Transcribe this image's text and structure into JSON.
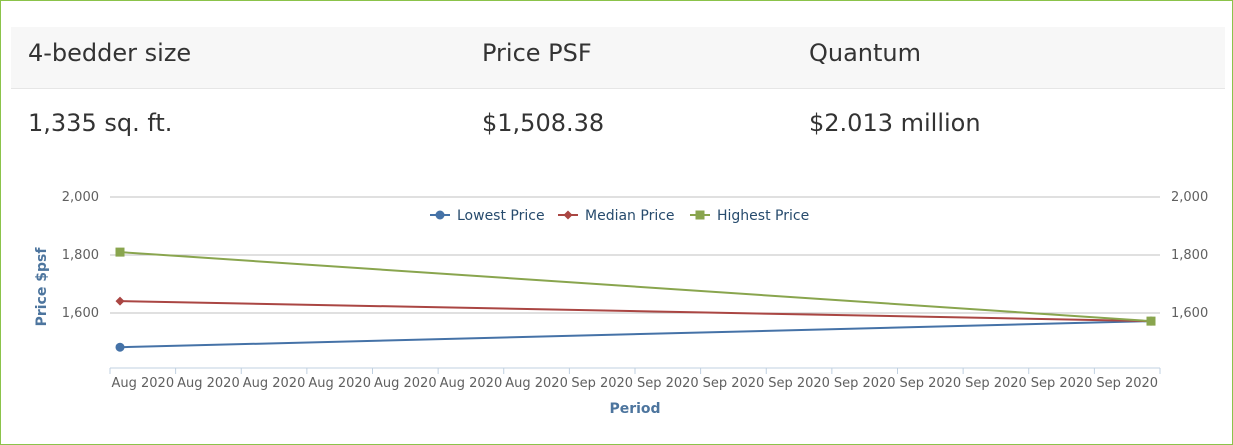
{
  "table": {
    "headers": [
      "4-bedder size",
      "Price PSF",
      "Quantum"
    ],
    "values": [
      "1,335 sq. ft.",
      "$1,508.38",
      "$2.013 million"
    ]
  },
  "chart_data": {
    "type": "line",
    "title": "",
    "xlabel": "Period",
    "ylabel": "Price $psf",
    "categories": [
      "Aug 2020",
      "Aug 2020",
      "Aug 2020",
      "Aug 2020",
      "Aug 2020",
      "Aug 2020",
      "Aug 2020",
      "Sep 2020",
      "Sep 2020",
      "Sep 2020",
      "Sep 2020",
      "Sep 2020",
      "Sep 2020",
      "Sep 2020",
      "Sep 2020",
      "Sep 2020"
    ],
    "ylim": [
      1500,
      2000
    ],
    "yticks": [
      1600,
      1800,
      2000
    ],
    "ytick_labels": [
      "1,600",
      "1,800",
      "2,000"
    ],
    "secondary_y_axis": true,
    "grid": true,
    "legend_position": "top-center",
    "series": [
      {
        "name": "Lowest Price",
        "color": "#4572a7",
        "marker": "circle",
        "start": 1482,
        "end": 1572
      },
      {
        "name": "Median Price",
        "color": "#aa4643",
        "marker": "diamond",
        "start": 1641,
        "end": 1572
      },
      {
        "name": "Highest Price",
        "color": "#89a54e",
        "marker": "square",
        "start": 1810,
        "end": 1572
      }
    ]
  }
}
